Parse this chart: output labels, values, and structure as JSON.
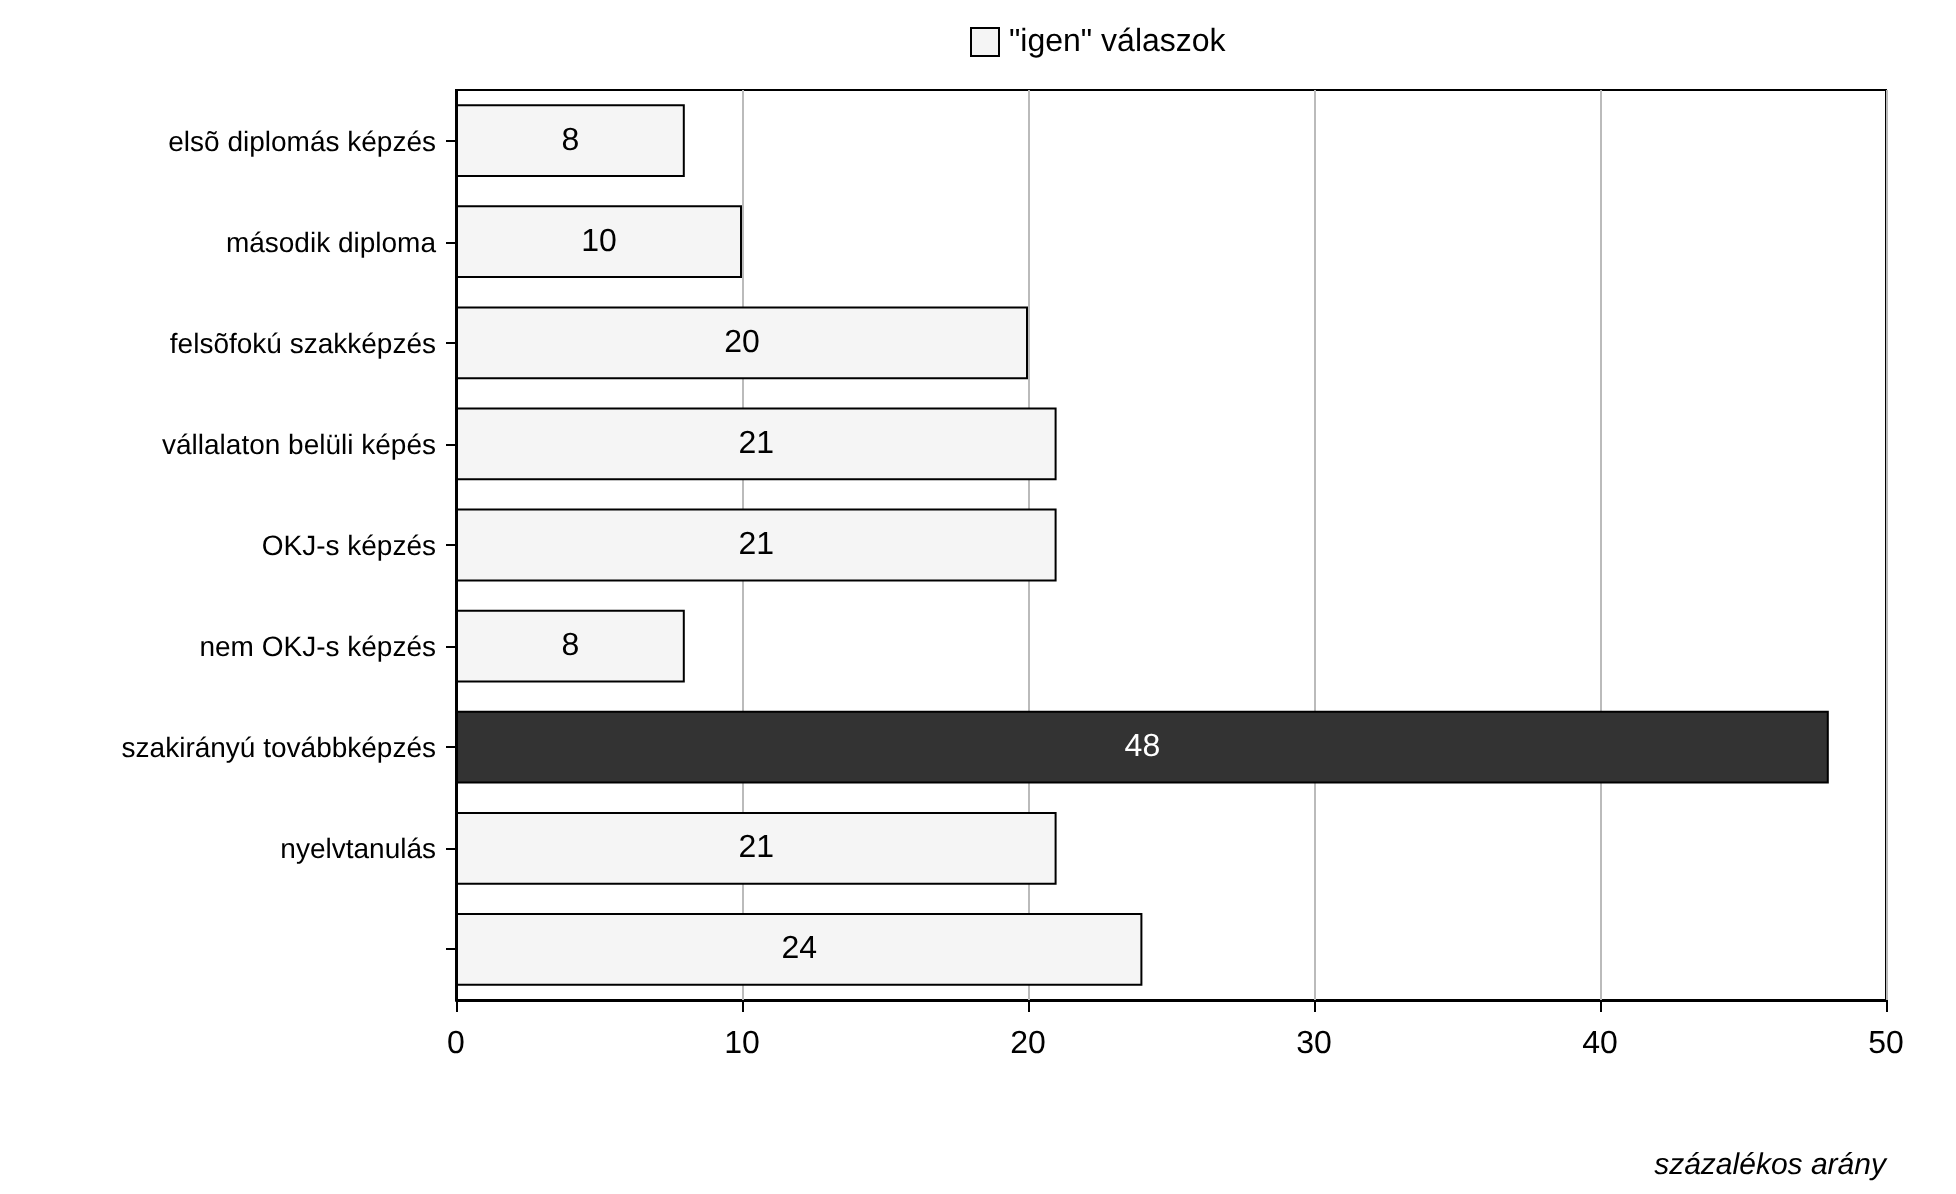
{
  "chart_data": {
    "type": "bar",
    "orientation": "horizontal",
    "xlabel": "százalékos arány",
    "categories": [
      "elsõ diplomás képzés",
      "második diploma",
      "felsõfokú szakképzés",
      "vállalaton belüli képés",
      "OKJ-s képzés",
      "nem OKJ-s képzés",
      "szakirányú továbbképzés",
      "nyelvtanulás",
      null
    ],
    "series": [
      {
        "name": "\"igen\" válaszok",
        "color": "#f5f5f5",
        "colors": [
          "#f5f5f5",
          "#f5f5f5",
          "#f5f5f5",
          "#f5f5f5",
          "#f5f5f5",
          "#f5f5f5",
          "#333333",
          "#f5f5f5",
          "#f5f5f5"
        ],
        "values": [
          8,
          10,
          20,
          21,
          21,
          8,
          48,
          21,
          24
        ]
      }
    ],
    "xlim": [
      0,
      50
    ],
    "xticks": [
      0,
      10,
      20,
      30,
      40,
      50
    ],
    "grid": "x",
    "legend": "top",
    "data_labels": true
  }
}
